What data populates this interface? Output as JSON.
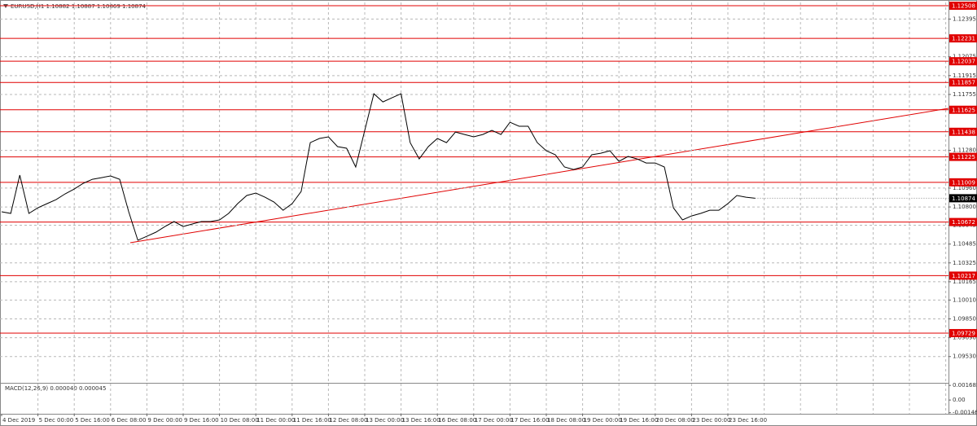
{
  "chart_data": {
    "type": "line",
    "title": "EURUSD,H1  1.10882 1.10887 1.10869 1.10874",
    "categories": [
      "4 Dec 2019",
      null,
      null,
      null,
      "5 Dec 00:00",
      null,
      null,
      null,
      "5 Dec 16:00",
      null,
      null,
      null,
      "6 Dec 08:00",
      null,
      null,
      null,
      "9 Dec 00:00",
      null,
      null,
      null,
      "9 Dec 16:00",
      null,
      null,
      null,
      "10 Dec 08:00",
      null,
      null,
      null,
      "11 Dec 00:00",
      null,
      null,
      null,
      "11 Dec 16:00",
      null,
      null,
      null,
      "12 Dec 08:00",
      null,
      null,
      null,
      "13 Dec 00:00",
      null,
      null,
      null,
      "13 Dec 16:00",
      null,
      null,
      null,
      "16 Dec 08:00",
      null,
      null,
      null,
      "17 Dec 00:00",
      null,
      null,
      null,
      "17 Dec 16:00",
      null,
      null,
      null,
      "18 Dec 08:00",
      null,
      null,
      null,
      "19 Dec 00:00",
      null,
      null,
      null,
      "19 Dec 16:00",
      null,
      null,
      null,
      "20 Dec 08:00",
      null,
      null,
      null,
      "23 Dec 00:00",
      null,
      null,
      null,
      "23 Dec 16:00",
      null,
      null,
      null
    ],
    "values": [
      1.10759,
      1.10745,
      1.1107,
      1.10745,
      1.10793,
      1.10828,
      1.10862,
      1.10911,
      1.10952,
      1.11001,
      1.11035,
      1.11049,
      1.11063,
      1.11035,
      1.10759,
      1.10517,
      1.10551,
      1.10586,
      1.10634,
      1.10676,
      1.10634,
      1.10655,
      1.10676,
      1.10676,
      1.1069,
      1.10745,
      1.10828,
      1.10897,
      1.10918,
      1.10883,
      1.10842,
      1.10772,
      1.10828,
      1.10931,
      1.11346,
      1.11381,
      1.11395,
      1.11312,
      1.11298,
      1.11139,
      1.1145,
      1.11761,
      1.11692,
      1.11726,
      1.11761,
      1.11346,
      1.11208,
      1.11312,
      1.11381,
      1.11346,
      1.11436,
      1.11415,
      1.11395,
      1.11415,
      1.1145,
      1.11415,
      1.11519,
      1.11485,
      1.11485,
      1.11346,
      1.11277,
      1.11243,
      1.11139,
      1.11118,
      1.11139,
      1.11243,
      1.11256,
      1.11277,
      1.11187,
      1.11229,
      1.11208,
      1.11173,
      1.11173,
      1.11139,
      1.10793,
      1.1069,
      1.10724,
      1.10745,
      1.10772,
      1.10772,
      1.10828,
      1.10897,
      1.10883,
      1.10874
    ],
    "color": "#000000",
    "ylim": [
      1.09307,
      1.12536
    ],
    "yticks": [
      1.12395,
      1.12075,
      1.11915,
      1.11755,
      {
        "value": 1.1128,
        "label": "1.11280"
      },
      {
        "value": 1.1096,
        "label": "1.10960"
      },
      {
        "value": 1.108,
        "label": "1.10800"
      },
      1.10645,
      1.10485,
      1.10325,
      1.10165,
      {
        "value": 1.1001,
        "label": "1.10010"
      },
      {
        "value": 1.0985,
        "label": "1.09850"
      },
      {
        "value": 1.0969,
        "label": "1.09690"
      },
      {
        "value": 1.0953,
        "label": "1.09530"
      }
    ],
    "grid": true,
    "levels": [
      1.12508,
      1.12231,
      1.12037,
      1.11857,
      1.11625,
      1.11438,
      1.11225,
      1.11009,
      1.10672,
      1.10217,
      1.09729
    ],
    "level_color": "#e00000",
    "last_price": 1.10874,
    "macd_label": "MACD(12,26,9) 0.000040 0.000045",
    "macd_ylim": [
      -0.00168,
      0.00189
    ],
    "macd_yticks": [
      0.001685,
      {
        "value": 0,
        "label": "0.00"
      },
      -0.001463
    ]
  }
}
